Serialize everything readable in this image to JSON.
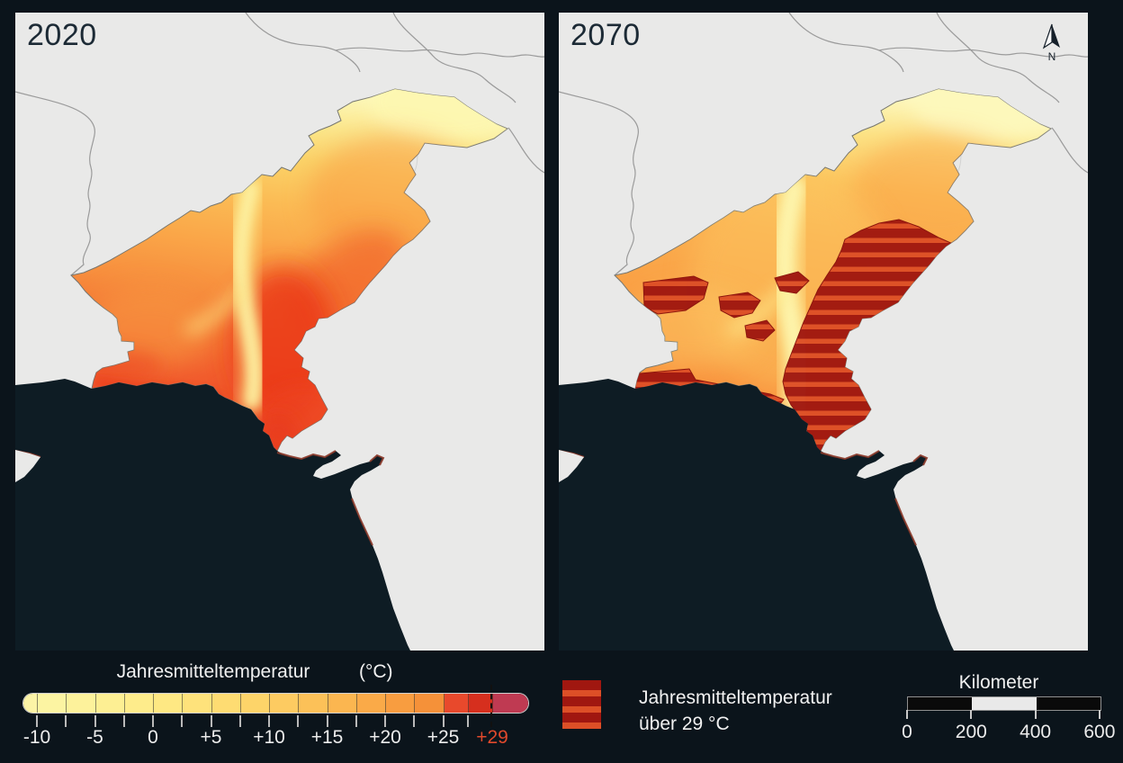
{
  "panels": [
    {
      "year": "2020"
    },
    {
      "year": "2070"
    }
  ],
  "north_arrow": {
    "label": "N"
  },
  "temperature_legend": {
    "title": "Jahresmitteltemperatur",
    "unit": "(°C)",
    "tick_labels": [
      "-10",
      "-5",
      "0",
      "+5",
      "+10",
      "+15",
      "+20",
      "+25"
    ],
    "threshold_label": "+29",
    "ramp": [
      "#fcf4a6",
      "#fcf4a2",
      "#fdf29b",
      "#fdef93",
      "#feec8b",
      "#fee883",
      "#fee27b",
      "#fedc72",
      "#fdd469",
      "#fdcb61",
      "#fcc158",
      "#fbb650",
      "#faaa48",
      "#f89d40",
      "#f59139",
      "#e8492c",
      "#d62f1e",
      "#bf3a52"
    ]
  },
  "hatch_legend": {
    "line1": "Jahresmitteltemperatur",
    "line2": "über 29 °C"
  },
  "scale_bar": {
    "title": "Kilometer",
    "tick_labels": [
      "0",
      "200",
      "400",
      "600"
    ]
  },
  "colors": {
    "background": "#0b141b",
    "ocean": "#0e1c24",
    "land": "#e9e9e8",
    "border_line": "#9b9b9b",
    "hatch_base": "#a01710",
    "hatch_stripe": "#dd4f27",
    "threshold_text": "#e0492c",
    "coast_fringe": "#8d3b2b"
  }
}
